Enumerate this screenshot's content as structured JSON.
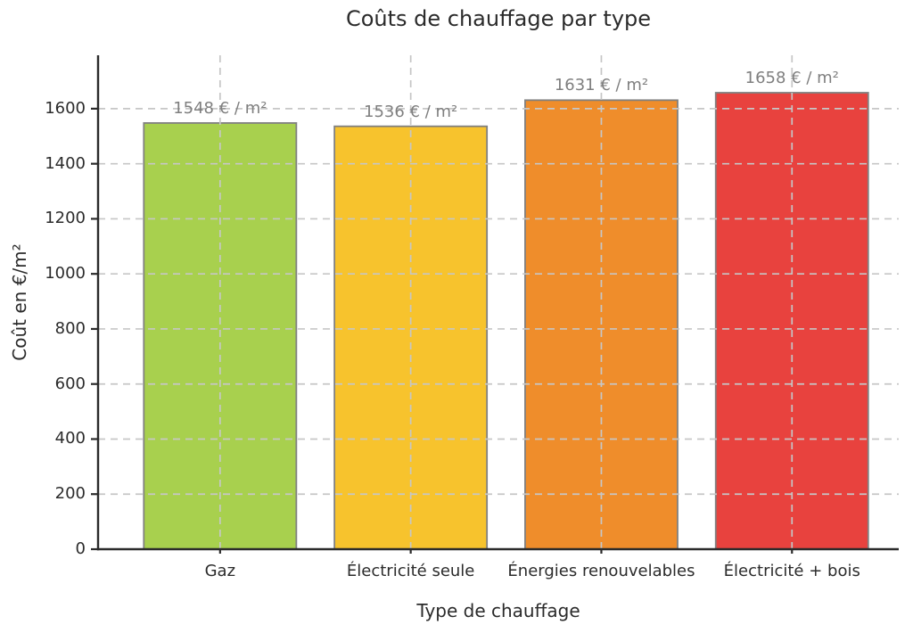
{
  "chart_data": {
    "type": "bar",
    "title": "Coûts de chauffage par type",
    "xlabel": "Type de chauffage",
    "ylabel": "Coût en €/m²",
    "categories": [
      "Gaz",
      "Électricité seule",
      "Énergies renouvelables",
      "Électricité + bois"
    ],
    "x": [
      0,
      1,
      2,
      3
    ],
    "values": [
      1548,
      1536,
      1631,
      1658
    ],
    "value_labels": [
      "1548 € / m²",
      "1536 € / m²",
      "1631 € / m²",
      "1658 € / m²"
    ],
    "bar_colors": [
      "#a8d04e",
      "#f7c32d",
      "#ef8d2b",
      "#e8423e"
    ],
    "bar_edge_color": "#808080",
    "bar_width": 0.8,
    "xlim": [
      -0.64,
      3.56
    ],
    "ylim": [
      0,
      1794
    ],
    "yticks": [
      0,
      200,
      400,
      600,
      800,
      1000,
      1200,
      1400,
      1600
    ],
    "grid": "dashed, horizontal at y-ticks and vertical at bar centers, drawn over bars",
    "legend": "none",
    "gridline_color": "#c6c6c6",
    "axis_color": "#2b2b2b",
    "tick_label_color": "#2b2b2b",
    "value_label_color": "#7f7f7f",
    "background_color": "#ffffff"
  }
}
